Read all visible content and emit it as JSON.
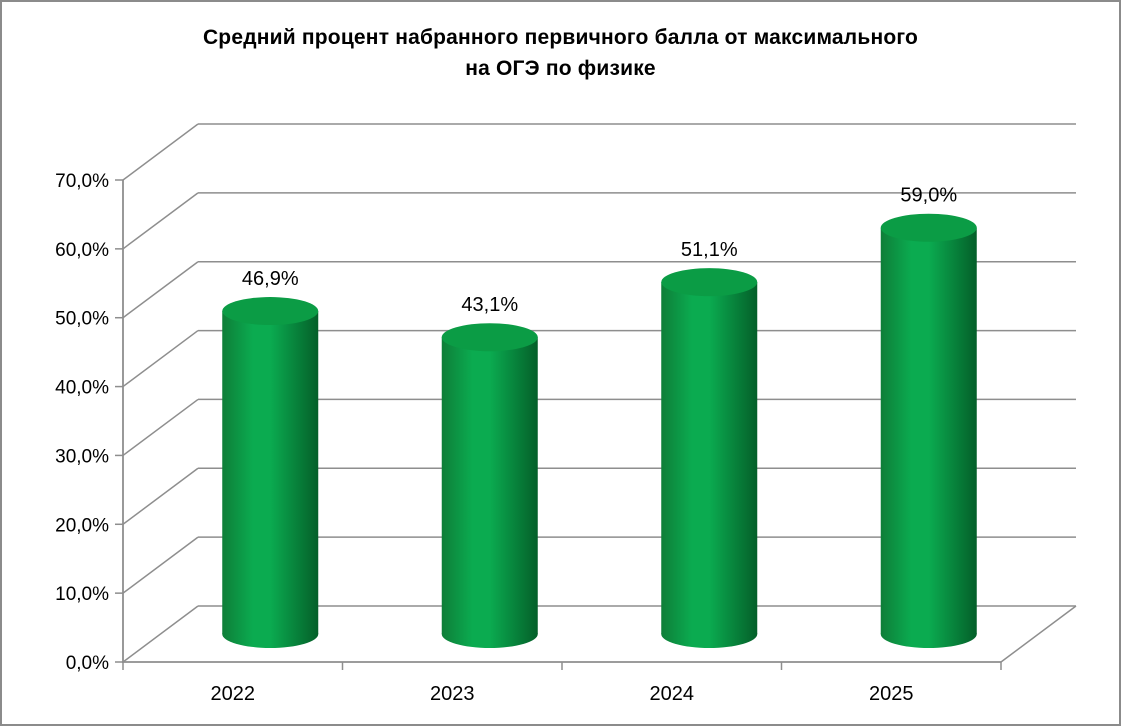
{
  "page": {
    "background": "#ffffff",
    "border_color": "#8b8b8b"
  },
  "chart_data": {
    "type": "bar",
    "subtype": "cylinder-3d",
    "title": "Средний процент набранного первичного балла от максимального на ОГЭ по физике",
    "title_lines": [
      "Средний процент набранного первичного балла от максимального",
      "на ОГЭ по физике"
    ],
    "categories": [
      "2022",
      "2023",
      "2024",
      "2025"
    ],
    "values": [
      46.9,
      43.1,
      51.1,
      59.0
    ],
    "value_labels": [
      "46,9%",
      "43,1%",
      "51,1%",
      "59,0%"
    ],
    "ylim": [
      0,
      70
    ],
    "ytick_step": 10,
    "ytick_labels": [
      "0,0%",
      "10,0%",
      "20,0%",
      "30,0%",
      "40,0%",
      "50,0%",
      "60,0%",
      "70,0%"
    ],
    "xlabel": "",
    "ylabel": "",
    "legend": null,
    "grid": true,
    "colors": {
      "bar_top": "#0b9c45",
      "bar_body_light": "#0bab50",
      "bar_body_dark_left": "#0e7e38",
      "bar_body_dark_right": "#045f29",
      "gridline": "#8e8e8e",
      "axis": "#8e8e8e",
      "text": "#000000"
    }
  }
}
